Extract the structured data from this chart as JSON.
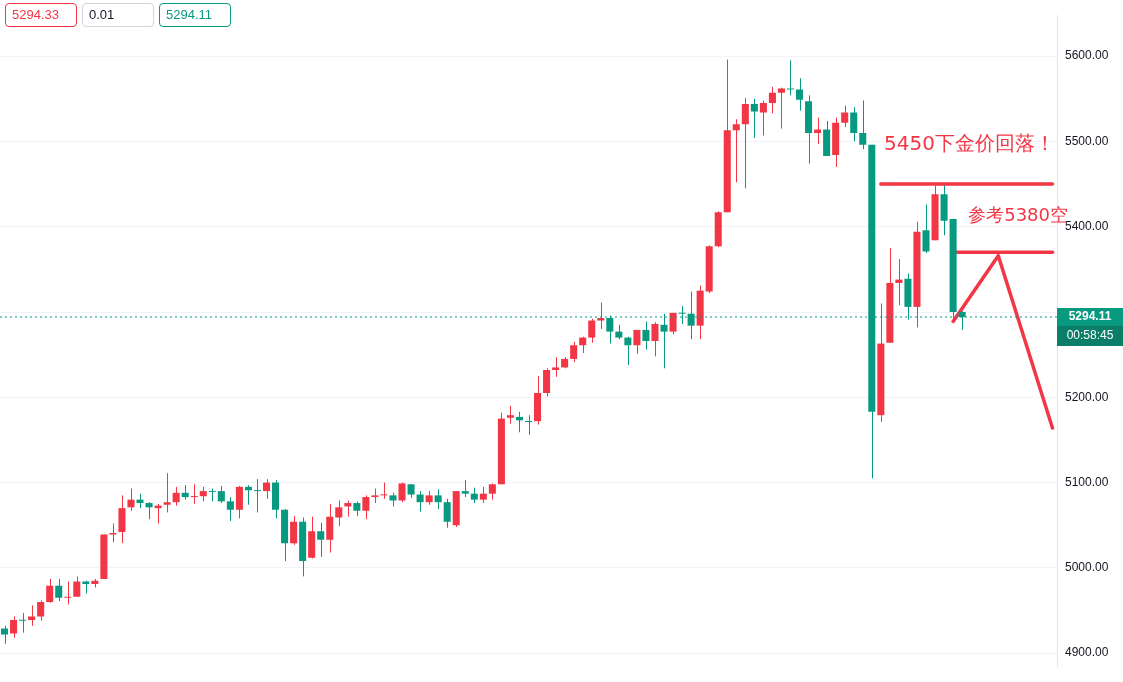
{
  "chart_data": {
    "type": "candlestick",
    "categories": [
      null,
      null,
      null,
      null,
      null,
      null,
      null,
      null,
      null,
      null,
      null,
      null,
      null,
      null,
      null,
      null,
      null,
      null,
      null,
      null,
      null,
      null,
      null,
      null,
      null,
      null,
      null,
      null,
      null,
      null,
      null,
      null,
      null,
      null,
      null,
      null,
      null,
      null,
      null,
      null,
      null,
      null,
      null,
      null,
      null,
      null,
      null,
      null,
      null,
      null,
      null,
      null,
      null,
      null,
      null,
      null,
      null,
      null,
      null,
      null,
      null,
      null,
      null,
      null,
      null,
      null,
      null,
      null,
      null,
      null,
      null,
      null,
      null,
      null,
      null,
      null,
      null,
      null,
      null,
      null,
      null,
      null,
      null,
      null,
      null,
      null,
      null,
      null,
      null,
      null,
      null,
      null,
      null,
      null,
      null,
      null,
      null,
      null,
      null,
      null,
      null,
      null,
      null,
      null,
      null,
      null,
      null,
      null,
      null,
      null,
      null,
      null,
      null,
      null,
      null,
      null,
      null
    ],
    "ohlc": [
      [
        4929,
        4932,
        4911,
        4922
      ],
      [
        4923,
        4943,
        4918,
        4939
      ],
      [
        4939,
        4947,
        4924,
        4938
      ],
      [
        4939,
        4956,
        4932,
        4943
      ],
      [
        4943,
        4962,
        4938,
        4960
      ],
      [
        4960,
        4987,
        4959,
        4979
      ],
      [
        4979,
        4987,
        4961,
        4965
      ],
      [
        4965,
        4984,
        4957,
        4966
      ],
      [
        4966,
        4990,
        4966,
        4984
      ],
      [
        4984,
        4985,
        4970,
        4981
      ],
      [
        4981,
        4987,
        4977,
        4985
      ],
      [
        4987,
        5039,
        4987,
        5039
      ],
      [
        5039,
        5052,
        5030,
        5041
      ],
      [
        5042,
        5085,
        5029,
        5070
      ],
      [
        5071,
        5093,
        5067,
        5080
      ],
      [
        5080,
        5087,
        5070,
        5076
      ],
      [
        5076,
        5077,
        5057,
        5071
      ],
      [
        5070,
        5075,
        5052,
        5073
      ],
      [
        5074,
        5111,
        5065,
        5077
      ],
      [
        5077,
        5095,
        5073,
        5088
      ],
      [
        5088,
        5097,
        5080,
        5083
      ],
      [
        5083,
        5098,
        5075,
        5084
      ],
      [
        5084,
        5095,
        5078,
        5090
      ],
      [
        5090,
        5093,
        5078,
        5089
      ],
      [
        5090,
        5096,
        5076,
        5078
      ],
      [
        5078,
        5083,
        5055,
        5068
      ],
      [
        5068,
        5096,
        5058,
        5095
      ],
      [
        5095,
        5097,
        5074,
        5091
      ],
      [
        5091,
        5104,
        5065,
        5090
      ],
      [
        5090,
        5104,
        5081,
        5100
      ],
      [
        5100,
        5103,
        5058,
        5068
      ],
      [
        5068,
        5069,
        5008,
        5029
      ],
      [
        5029,
        5061,
        5027,
        5054
      ],
      [
        5054,
        5059,
        4990,
        5008
      ],
      [
        5012,
        5060,
        5011,
        5043
      ],
      [
        5043,
        5053,
        5013,
        5033
      ],
      [
        5033,
        5075,
        5018,
        5060
      ],
      [
        5059,
        5079,
        5049,
        5071
      ],
      [
        5072,
        5079,
        5060,
        5076
      ],
      [
        5076,
        5078,
        5061,
        5067
      ],
      [
        5067,
        5085,
        5057,
        5083
      ],
      [
        5083,
        5093,
        5076,
        5085
      ],
      [
        5085,
        5100,
        5081,
        5086
      ],
      [
        5085,
        5088,
        5072,
        5079
      ],
      [
        5079,
        5100,
        5077,
        5099
      ],
      [
        5098,
        5098,
        5082,
        5086
      ],
      [
        5086,
        5090,
        5066,
        5077
      ],
      [
        5077,
        5090,
        5074,
        5085
      ],
      [
        5085,
        5092,
        5069,
        5077
      ],
      [
        5077,
        5081,
        5047,
        5054
      ],
      [
        5050,
        5090,
        5048,
        5090
      ],
      [
        5090,
        5103,
        5083,
        5087
      ],
      [
        5087,
        5094,
        5076,
        5080
      ],
      [
        5080,
        5095,
        5076,
        5087
      ],
      [
        5087,
        5099,
        5080,
        5098
      ],
      [
        5098,
        5182,
        5098,
        5175
      ],
      [
        5176,
        5190,
        5169,
        5179
      ],
      [
        5177,
        5183,
        5159,
        5173
      ],
      [
        5172,
        5179,
        5156,
        5171
      ],
      [
        5172,
        5225,
        5168,
        5205
      ],
      [
        5205,
        5234,
        5201,
        5232
      ],
      [
        5232,
        5247,
        5224,
        5235
      ],
      [
        5235,
        5247,
        5234,
        5245
      ],
      [
        5245,
        5265,
        5241,
        5261
      ],
      [
        5261,
        5271,
        5252,
        5270
      ],
      [
        5270,
        5292,
        5264,
        5290
      ],
      [
        5290,
        5311,
        5280,
        5293
      ],
      [
        5293,
        5296,
        5263,
        5277
      ],
      [
        5277,
        5285,
        5268,
        5270
      ],
      [
        5270,
        5271,
        5238,
        5261
      ],
      [
        5261,
        5279,
        5251,
        5279
      ],
      [
        5279,
        5289,
        5256,
        5266
      ],
      [
        5266,
        5288,
        5248,
        5286
      ],
      [
        5285,
        5298,
        5234,
        5277
      ],
      [
        5277,
        5299,
        5274,
        5299
      ],
      [
        5299,
        5307,
        5286,
        5298
      ],
      [
        5298,
        5324,
        5268,
        5284
      ],
      [
        5284,
        5331,
        5268,
        5325
      ],
      [
        5324,
        5378,
        5322,
        5377
      ],
      [
        5377,
        5418,
        5376,
        5417
      ],
      [
        5417,
        5596,
        5417,
        5513
      ],
      [
        5513,
        5526,
        5452,
        5520
      ],
      [
        5520,
        5551,
        5445,
        5544
      ],
      [
        5544,
        5550,
        5504,
        5535
      ],
      [
        5534,
        5548,
        5507,
        5545
      ],
      [
        5545,
        5564,
        5533,
        5557
      ],
      [
        5557,
        5563,
        5515,
        5562
      ],
      [
        5562,
        5595,
        5554,
        5561
      ],
      [
        5561,
        5574,
        5536,
        5549
      ],
      [
        5547,
        5554,
        5474,
        5510
      ],
      [
        5510,
        5528,
        5497,
        5514
      ],
      [
        5514,
        5524,
        5483,
        5483
      ],
      [
        5484,
        5528,
        5470,
        5522
      ],
      [
        5522,
        5542,
        5517,
        5534
      ],
      [
        5534,
        5540,
        5500,
        5510
      ],
      [
        5510,
        5548,
        5491,
        5496
      ],
      [
        5496,
        5496,
        5105,
        5183
      ],
      [
        5179,
        5310,
        5171,
        5263
      ],
      [
        5264,
        5375,
        5264,
        5334
      ],
      [
        5334,
        5362,
        5308,
        5338
      ],
      [
        5339,
        5345,
        5291,
        5306
      ],
      [
        5306,
        5406,
        5282,
        5394
      ],
      [
        5396,
        5426,
        5369,
        5371
      ],
      [
        5384,
        5448,
        5384,
        5438
      ],
      [
        5438,
        5449,
        5390,
        5407
      ],
      [
        5409,
        5409,
        5291,
        5300
      ],
      [
        5300,
        5301,
        5279,
        5294
      ],
      null,
      null,
      null,
      null,
      null,
      null,
      null,
      null,
      null,
      null
    ],
    "colors": [
      "#089981",
      "#f23645",
      "#089981",
      "#f23645",
      "#f23645",
      "#f23645",
      "#089981",
      "#f23645",
      "#f23645",
      "#089981",
      "#f23645",
      "#f23645",
      "#f23645",
      "#f23645",
      "#f23645",
      "#089981",
      "#089981",
      "#f23645",
      "#f23645",
      "#f23645",
      "#089981",
      "#f23645",
      "#f23645",
      "#089981",
      "#089981",
      "#089981",
      "#f23645",
      "#089981",
      "#089981",
      "#f23645",
      "#089981",
      "#089981",
      "#f23645",
      "#089981",
      "#f23645",
      "#089981",
      "#f23645",
      "#f23645",
      "#f23645",
      "#089981",
      "#f23645",
      "#f23645",
      "#f23645",
      "#089981",
      "#f23645",
      "#089981",
      "#089981",
      "#f23645",
      "#089981",
      "#089981",
      "#f23645",
      "#089981",
      "#089981",
      "#f23645",
      "#f23645",
      "#f23645",
      "#f23645",
      "#089981",
      "#089981",
      "#f23645",
      "#f23645",
      "#f23645",
      "#f23645",
      "#f23645",
      "#f23645",
      "#f23645",
      "#f23645",
      "#089981",
      "#089981",
      "#089981",
      "#f23645",
      "#089981",
      "#f23645",
      "#089981",
      "#f23645",
      "#089981",
      "#089981",
      "#f23645",
      "#f23645",
      "#f23645",
      "#f23645",
      "#f23645",
      "#f23645",
      "#089981",
      "#f23645",
      "#f23645",
      "#f23645",
      "#089981",
      "#089981",
      "#089981",
      "#f23645",
      "#089981",
      "#f23645",
      "#f23645",
      "#089981",
      "#089981",
      "#089981",
      "#f23645",
      "#f23645",
      "#f23645",
      "#089981",
      "#f23645",
      "#089981",
      "#f23645",
      "#089981",
      "#089981",
      "#089981",
      null,
      null,
      null,
      null,
      null,
      null,
      null,
      null,
      null,
      null
    ],
    "series": [
      {
        "type": "line",
        "color": "#f23645",
        "values": [
          null,
          null,
          null,
          null,
          null,
          null,
          null,
          null,
          null,
          null,
          null,
          null,
          null,
          null,
          null,
          null,
          null,
          null,
          null,
          null,
          null,
          null,
          null,
          null,
          null,
          null,
          null,
          null,
          null,
          null,
          null,
          null,
          null,
          null,
          null,
          null,
          null,
          null,
          null,
          null,
          null,
          null,
          null,
          null,
          null,
          null,
          null,
          null,
          null,
          null,
          null,
          null,
          null,
          null,
          null,
          null,
          null,
          null,
          null,
          null,
          null,
          null,
          null,
          null,
          null,
          null,
          null,
          null,
          null,
          null,
          null,
          null,
          null,
          null,
          null,
          null,
          null,
          null,
          null,
          null,
          null,
          null,
          null,
          null,
          null,
          null,
          null,
          null,
          null,
          null,
          null,
          null,
          null,
          null,
          null,
          null,
          null,
          5450,
          5450,
          5450,
          5450,
          5450,
          5450,
          5450,
          5450,
          5450,
          5450,
          5450,
          5450,
          5450,
          5450,
          5450,
          5450,
          5450,
          5450,
          5450,
          5450
        ]
      },
      {
        "type": "line",
        "color": "#f23645",
        "values": [
          null,
          null,
          null,
          null,
          null,
          null,
          null,
          null,
          null,
          null,
          null,
          null,
          null,
          null,
          null,
          null,
          null,
          null,
          null,
          null,
          null,
          null,
          null,
          null,
          null,
          null,
          null,
          null,
          null,
          null,
          null,
          null,
          null,
          null,
          null,
          null,
          null,
          null,
          null,
          null,
          null,
          null,
          null,
          null,
          null,
          null,
          null,
          null,
          null,
          null,
          null,
          null,
          null,
          null,
          null,
          null,
          null,
          null,
          null,
          null,
          null,
          null,
          null,
          null,
          null,
          null,
          null,
          null,
          null,
          null,
          null,
          null,
          null,
          null,
          null,
          null,
          null,
          null,
          null,
          null,
          null,
          null,
          null,
          null,
          null,
          null,
          null,
          null,
          null,
          null,
          null,
          null,
          null,
          null,
          null,
          null,
          null,
          null,
          null,
          null,
          null,
          null,
          null,
          null,
          null,
          5370,
          5370,
          5370,
          5370,
          5370,
          5370,
          5370,
          5370,
          5370,
          5370,
          5370,
          5370
        ]
      },
      {
        "type": "line",
        "color": "#f23645",
        "values": [
          null,
          null,
          null,
          null,
          null,
          null,
          null,
          null,
          null,
          null,
          null,
          null,
          null,
          null,
          null,
          null,
          null,
          null,
          null,
          null,
          null,
          null,
          null,
          null,
          null,
          null,
          null,
          null,
          null,
          null,
          null,
          null,
          null,
          null,
          null,
          null,
          null,
          null,
          null,
          null,
          null,
          null,
          null,
          null,
          null,
          null,
          null,
          null,
          null,
          null,
          null,
          null,
          null,
          null,
          null,
          null,
          null,
          null,
          null,
          null,
          null,
          null,
          null,
          null,
          null,
          null,
          null,
          null,
          null,
          null,
          null,
          null,
          null,
          null,
          null,
          null,
          null,
          null,
          null,
          null,
          null,
          null,
          null,
          null,
          null,
          null,
          null,
          null,
          null,
          null,
          null,
          null,
          null,
          null,
          null,
          null,
          null,
          null,
          null,
          null,
          null,
          null,
          null,
          null,
          null,
          5289,
          null,
          null,
          null,
          null,
          5366,
          null,
          null,
          null,
          null,
          null,
          5164
        ]
      }
    ],
    "ylim": [
      4884,
      5648
    ],
    "yticks": [
      {
        "value": 4900,
        "label": "4900.00"
      },
      {
        "value": 5000,
        "label": "5000.00"
      },
      {
        "value": 5100,
        "label": "5100.00"
      },
      {
        "value": 5200,
        "label": "5200.00"
      },
      {
        "value": 5300,
        "label": null
      },
      {
        "value": 5400,
        "label": "5400.00"
      },
      {
        "value": 5500,
        "label": "5500.00"
      },
      {
        "value": 5600,
        "label": "5600.00"
      }
    ],
    "grid": "y",
    "tick_labels": "y",
    "ref_lines": [
      {
        "axis": "y",
        "value": 5294.11,
        "label": "5294.11",
        "color": "#089981",
        "line_style": "dotted"
      }
    ],
    "annotations": [
      {
        "text": "5450下金价回落！",
        "y": 5450
      },
      {
        "text": "参考5380空",
        "y": 5370
      },
      "5294.33",
      "0.01",
      "5294.11",
      "00:58:45"
    ]
  }
}
